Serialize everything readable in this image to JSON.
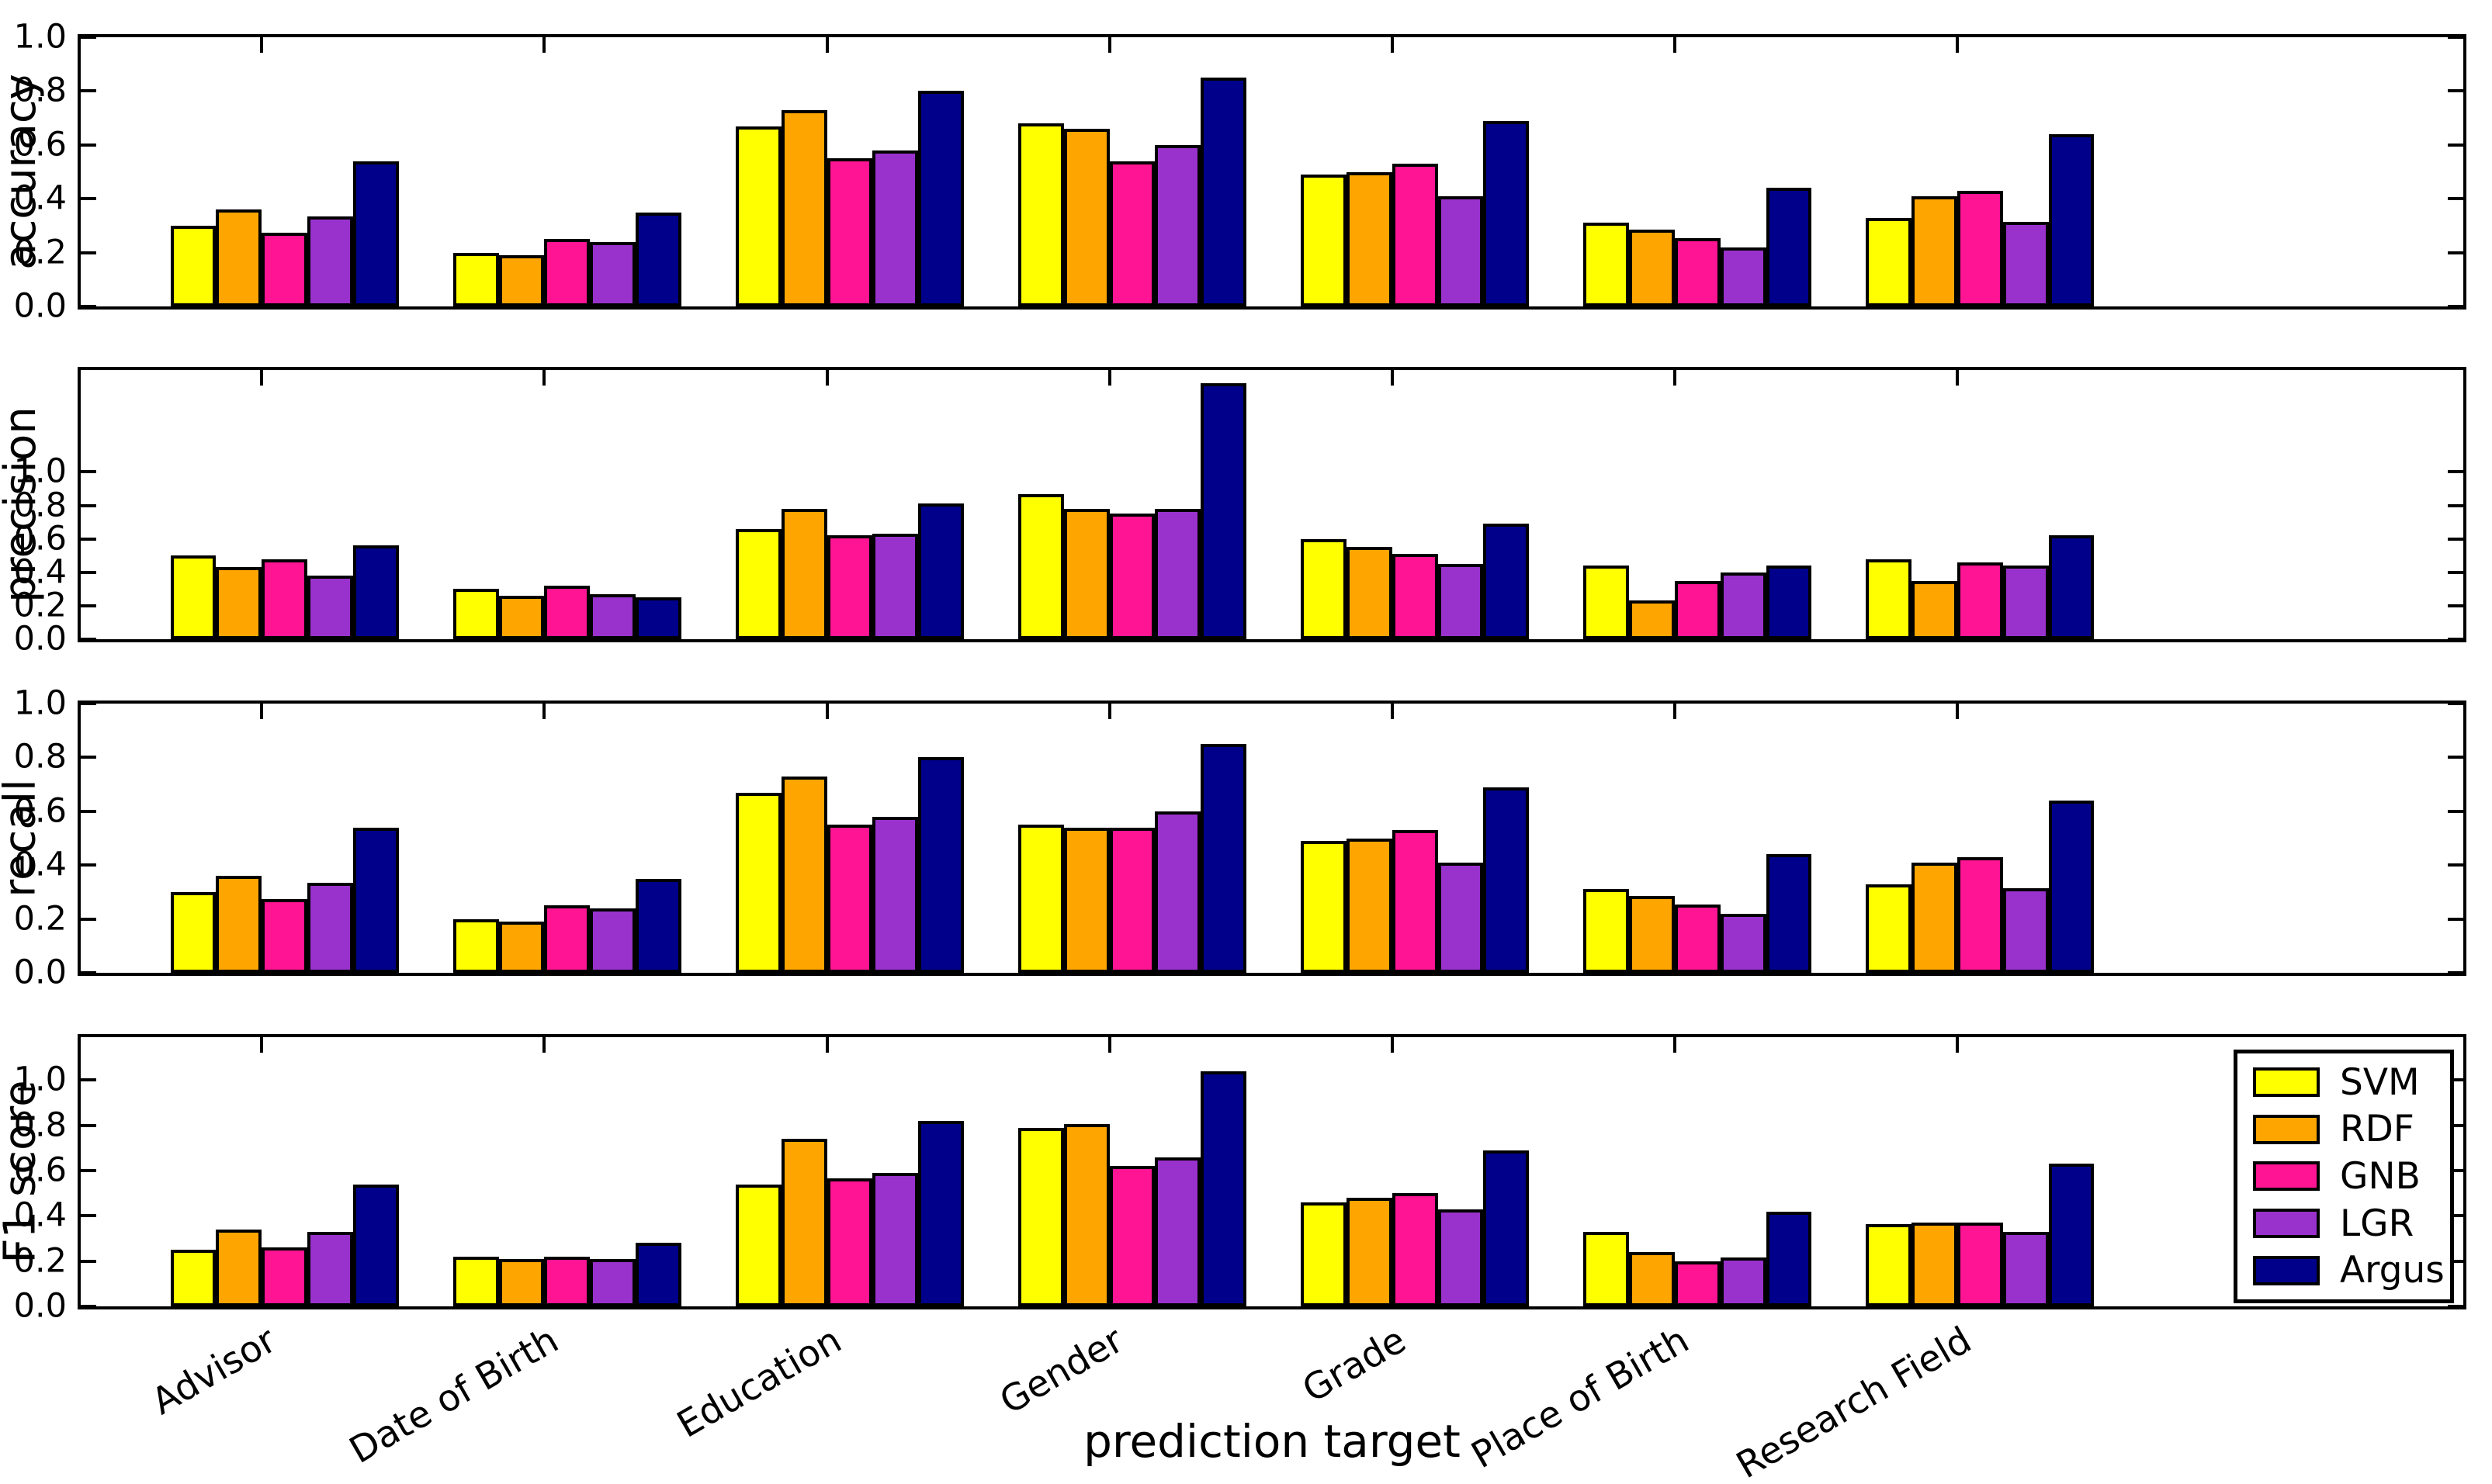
{
  "chart_meta": {
    "xlabel": "prediction target",
    "background": "#ffffff",
    "axis_color": "#000000",
    "legend_position": "lower right",
    "grid": false
  },
  "legend": {
    "entries": [
      {
        "label": "SVM",
        "color": "#ffff00"
      },
      {
        "label": "RDF",
        "color": "#ffa500"
      },
      {
        "label": "GNB",
        "color": "#ff1493"
      },
      {
        "label": "LGR",
        "color": "#9932cc"
      },
      {
        "label": "Argus",
        "color": "#00008b"
      }
    ]
  },
  "chart_data": [
    {
      "type": "bar",
      "title": "",
      "ylabel": "accuracy",
      "xlabel": "",
      "categories": [
        "Advisor",
        "Date of Birth",
        "Education",
        "Gender",
        "Grade",
        "Place of Birth",
        "Research Field"
      ],
      "yticks": [
        "0.0",
        "0.2",
        "0.4",
        "0.6",
        "0.8",
        "1.0"
      ],
      "ytick_values": [
        0,
        0.2,
        0.4,
        0.6,
        0.8,
        1.0
      ],
      "ylim": [
        0,
        1.0
      ],
      "series": [
        {
          "name": "SVM",
          "color": "#ffff00",
          "values": [
            0.3,
            0.2,
            0.67,
            0.68,
            0.49,
            0.31,
            0.33
          ]
        },
        {
          "name": "RDF",
          "color": "#ffa500",
          "values": [
            0.36,
            0.19,
            0.73,
            0.66,
            0.5,
            0.285,
            0.41
          ]
        },
        {
          "name": "GNB",
          "color": "#ff1493",
          "values": [
            0.275,
            0.25,
            0.55,
            0.54,
            0.53,
            0.255,
            0.43
          ]
        },
        {
          "name": "LGR",
          "color": "#9932cc",
          "values": [
            0.335,
            0.24,
            0.58,
            0.6,
            0.41,
            0.22,
            0.315
          ]
        },
        {
          "name": "Argus",
          "color": "#00008b",
          "values": [
            0.54,
            0.35,
            0.8,
            0.85,
            0.69,
            0.44,
            0.64
          ]
        }
      ]
    },
    {
      "type": "bar",
      "title": "",
      "ylabel": "precision",
      "xlabel": "",
      "categories": [
        "Advisor",
        "Date of Birth",
        "Education",
        "Gender",
        "Grade",
        "Place of Birth",
        "Research Field"
      ],
      "yticks": [
        "0.0",
        "0.2",
        "0.4",
        "0.6",
        "0.8",
        "1.0"
      ],
      "ytick_values": [
        0,
        0.2,
        0.4,
        0.6,
        0.8,
        1.0
      ],
      "ylim": [
        0,
        1.61
      ],
      "series": [
        {
          "name": "SVM",
          "color": "#ffff00",
          "values": [
            0.5,
            0.3,
            0.66,
            0.87,
            0.6,
            0.44,
            0.48
          ]
        },
        {
          "name": "RDF",
          "color": "#ffa500",
          "values": [
            0.43,
            0.26,
            0.78,
            0.78,
            0.55,
            0.23,
            0.35
          ]
        },
        {
          "name": "GNB",
          "color": "#ff1493",
          "values": [
            0.48,
            0.32,
            0.62,
            0.75,
            0.51,
            0.35,
            0.46
          ]
        },
        {
          "name": "LGR",
          "color": "#9932cc",
          "values": [
            0.38,
            0.27,
            0.63,
            0.78,
            0.45,
            0.4,
            0.44
          ]
        },
        {
          "name": "Argus",
          "color": "#00008b",
          "values": [
            0.56,
            0.25,
            0.81,
            1.53,
            0.69,
            0.44,
            0.62
          ]
        }
      ]
    },
    {
      "type": "bar",
      "title": "",
      "ylabel": "recall",
      "xlabel": "",
      "categories": [
        "Advisor",
        "Date of Birth",
        "Education",
        "Gender",
        "Grade",
        "Place of Birth",
        "Research Field"
      ],
      "yticks": [
        "0.0",
        "0.2",
        "0.4",
        "0.6",
        "0.8",
        "1.0"
      ],
      "ytick_values": [
        0,
        0.2,
        0.4,
        0.6,
        0.8,
        1.0
      ],
      "ylim": [
        0,
        1.0
      ],
      "series": [
        {
          "name": "SVM",
          "color": "#ffff00",
          "values": [
            0.3,
            0.2,
            0.67,
            0.55,
            0.49,
            0.31,
            0.33
          ]
        },
        {
          "name": "RDF",
          "color": "#ffa500",
          "values": [
            0.36,
            0.19,
            0.73,
            0.54,
            0.5,
            0.285,
            0.41
          ]
        },
        {
          "name": "GNB",
          "color": "#ff1493",
          "values": [
            0.275,
            0.25,
            0.55,
            0.54,
            0.53,
            0.255,
            0.43
          ]
        },
        {
          "name": "LGR",
          "color": "#9932cc",
          "values": [
            0.335,
            0.24,
            0.58,
            0.6,
            0.41,
            0.22,
            0.315
          ]
        },
        {
          "name": "Argus",
          "color": "#00008b",
          "values": [
            0.54,
            0.35,
            0.8,
            0.85,
            0.69,
            0.44,
            0.64
          ]
        }
      ]
    },
    {
      "type": "bar",
      "title": "",
      "ylabel": "F1 score",
      "xlabel": "prediction target",
      "categories": [
        "Advisor",
        "Date of Birth",
        "Education",
        "Gender",
        "Grade",
        "Place of Birth",
        "Research Field"
      ],
      "yticks": [
        "0.0",
        "0.2",
        "0.4",
        "0.6",
        "0.8",
        "1.0"
      ],
      "ytick_values": [
        0,
        0.2,
        0.4,
        0.6,
        0.8,
        1.0
      ],
      "ylim": [
        0,
        1.19
      ],
      "series": [
        {
          "name": "SVM",
          "color": "#ffff00",
          "values": [
            0.25,
            0.22,
            0.54,
            0.79,
            0.46,
            0.33,
            0.365
          ]
        },
        {
          "name": "RDF",
          "color": "#ffa500",
          "values": [
            0.34,
            0.21,
            0.74,
            0.805,
            0.48,
            0.24,
            0.37
          ]
        },
        {
          "name": "GNB",
          "color": "#ff1493",
          "values": [
            0.26,
            0.22,
            0.565,
            0.62,
            0.5,
            0.2,
            0.37
          ]
        },
        {
          "name": "LGR",
          "color": "#9932cc",
          "values": [
            0.33,
            0.21,
            0.59,
            0.66,
            0.43,
            0.215,
            0.33
          ]
        },
        {
          "name": "Argus",
          "color": "#00008b",
          "values": [
            0.54,
            0.28,
            0.82,
            1.04,
            0.69,
            0.42,
            0.63
          ]
        }
      ]
    }
  ]
}
